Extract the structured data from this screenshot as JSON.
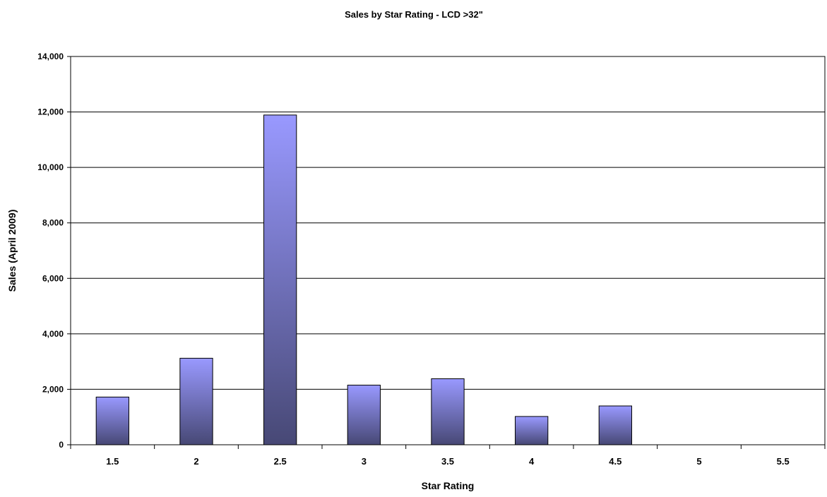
{
  "chart_data": {
    "type": "bar",
    "title": "Sales by Star Rating - LCD >32\"",
    "xlabel": "Star Rating",
    "ylabel": "Sales (April 2009)",
    "categories": [
      "1.5",
      "2",
      "2.5",
      "3",
      "3.5",
      "4",
      "4.5",
      "5",
      "5.5"
    ],
    "values": [
      1720,
      3120,
      11890,
      2150,
      2380,
      1020,
      1400,
      0,
      0
    ],
    "ylim": [
      0,
      14000
    ],
    "yticks": [
      0,
      2000,
      4000,
      6000,
      8000,
      10000,
      12000,
      14000
    ],
    "ytick_labels": [
      "0",
      "2,000",
      "4,000",
      "6,000",
      "8,000",
      "10,000",
      "12,000",
      "14,000"
    ],
    "grid": true,
    "legend": "none",
    "colors": {
      "bar_top": "#9999ff",
      "bar_bottom": "#474875",
      "bar_outline": "#000000",
      "gridline": "#000000",
      "background": "#ffffff"
    }
  }
}
